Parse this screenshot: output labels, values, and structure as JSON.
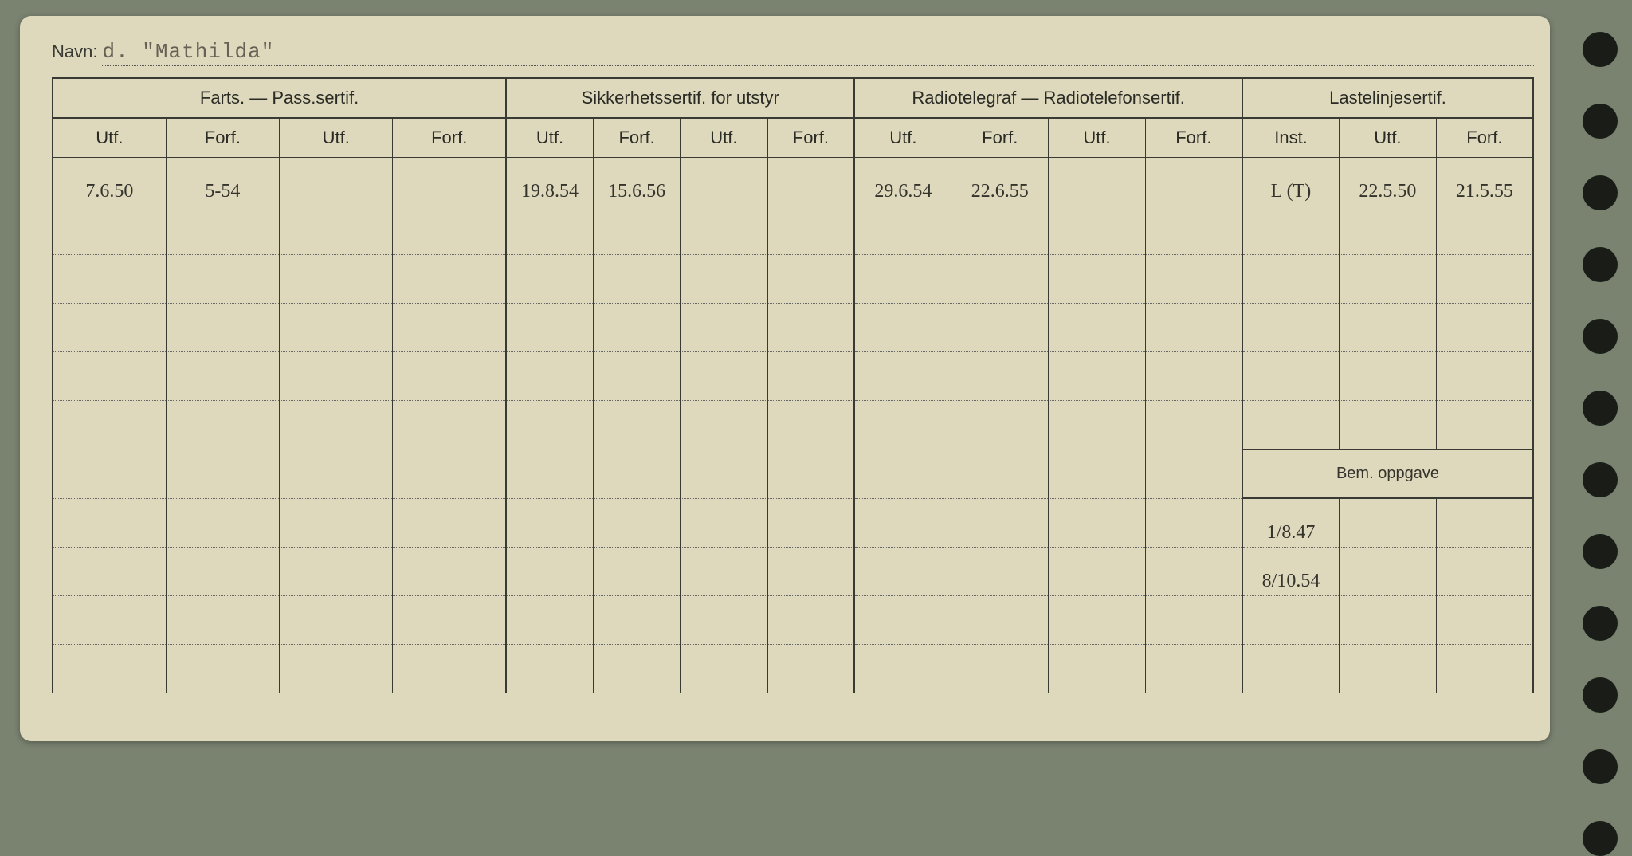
{
  "navn_label": "Navn:",
  "navn_value": "d. \"Mathilda\"",
  "groups": {
    "farts": "Farts. — Pass.sertif.",
    "sikkerhet": "Sikkerhetssertif. for utstyr",
    "radio": "Radiotelegraf — Radiotelefonsertif.",
    "laste": "Lastelinjesertif."
  },
  "sub": {
    "utf": "Utf.",
    "forf": "Forf.",
    "inst": "Inst."
  },
  "bem_label": "Bem. oppgave",
  "rows": [
    {
      "c0": "7.6.50",
      "c1": "5-54",
      "c2": "",
      "c3": "",
      "c4": "19.8.54",
      "c5": "15.6.56",
      "c6": "",
      "c7": "",
      "c8": "29.6.54",
      "c9": "22.6.55",
      "c10": "",
      "c11": "",
      "c12": "L (T)",
      "c13": "22.5.50",
      "c14": "21.5.55"
    },
    {
      "c0": "",
      "c1": "",
      "c2": "",
      "c3": "",
      "c4": "",
      "c5": "",
      "c6": "",
      "c7": "",
      "c8": "",
      "c9": "",
      "c10": "",
      "c11": "",
      "c12": "",
      "c13": "",
      "c14": ""
    },
    {
      "c0": "",
      "c1": "",
      "c2": "",
      "c3": "",
      "c4": "",
      "c5": "",
      "c6": "",
      "c7": "",
      "c8": "",
      "c9": "",
      "c10": "",
      "c11": "",
      "c12": "",
      "c13": "",
      "c14": ""
    },
    {
      "c0": "",
      "c1": "",
      "c2": "",
      "c3": "",
      "c4": "",
      "c5": "",
      "c6": "",
      "c7": "",
      "c8": "",
      "c9": "",
      "c10": "",
      "c11": "",
      "c12": "",
      "c13": "",
      "c14": ""
    },
    {
      "c0": "",
      "c1": "",
      "c2": "",
      "c3": "",
      "c4": "",
      "c5": "",
      "c6": "",
      "c7": "",
      "c8": "",
      "c9": "",
      "c10": "",
      "c11": "",
      "c12": "",
      "c13": "",
      "c14": ""
    },
    {
      "c0": "",
      "c1": "",
      "c2": "",
      "c3": "",
      "c4": "",
      "c5": "",
      "c6": "",
      "c7": "",
      "c8": "",
      "c9": "",
      "c10": "",
      "c11": "",
      "c12": "",
      "c13": "",
      "c14": ""
    }
  ],
  "bem_rows": [
    {
      "c0": "",
      "c1": "",
      "c2": "",
      "c3": "",
      "c4": "",
      "c5": "",
      "c6": "",
      "c7": "",
      "c8": "",
      "c9": "",
      "c10": "",
      "c11": "",
      "b0": "1/8.47",
      "b1": "",
      "b2": ""
    },
    {
      "c0": "",
      "c1": "",
      "c2": "",
      "c3": "",
      "c4": "",
      "c5": "",
      "c6": "",
      "c7": "",
      "c8": "",
      "c9": "",
      "c10": "",
      "c11": "",
      "b0": "8/10.54",
      "b1": "",
      "b2": ""
    },
    {
      "c0": "",
      "c1": "",
      "c2": "",
      "c3": "",
      "c4": "",
      "c5": "",
      "c6": "",
      "c7": "",
      "c8": "",
      "c9": "",
      "c10": "",
      "c11": "",
      "b0": "",
      "b1": "",
      "b2": ""
    },
    {
      "c0": "",
      "c1": "",
      "c2": "",
      "c3": "",
      "c4": "",
      "c5": "",
      "c6": "",
      "c7": "",
      "c8": "",
      "c9": "",
      "c10": "",
      "c11": "",
      "b0": "",
      "b1": "",
      "b2": ""
    }
  ],
  "colors": {
    "page_bg": "#7a8270",
    "card_bg": "#ded9bd",
    "line": "#3a3a34",
    "handwriting": "#34332c",
    "typewriter": "#676055"
  },
  "hole_count": 12
}
